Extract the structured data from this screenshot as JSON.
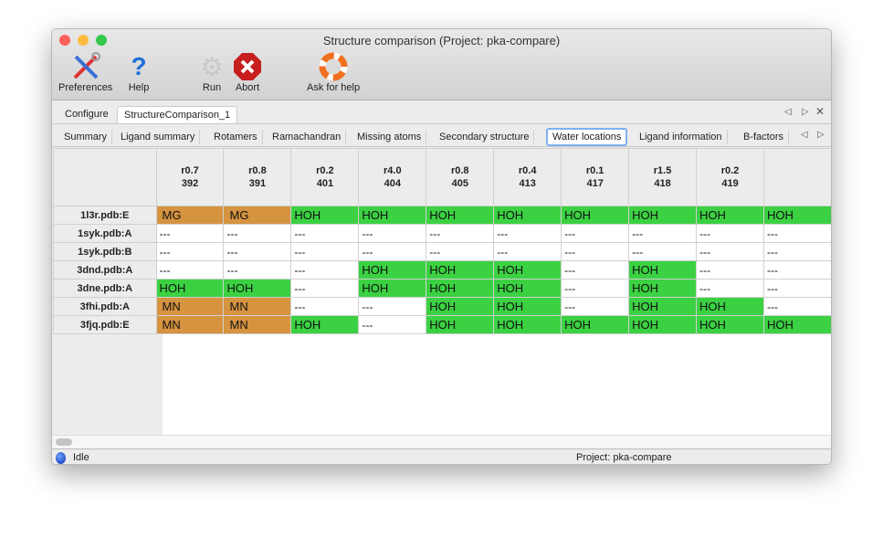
{
  "window": {
    "title": "Structure comparison (Project: pka-compare)"
  },
  "toolbar": [
    {
      "label": "Preferences",
      "icon": "tools-icon"
    },
    {
      "label": "Help",
      "icon": "help-icon"
    },
    {
      "label": "Run",
      "icon": "gear-icon"
    },
    {
      "label": "Abort",
      "icon": "abort-icon"
    },
    {
      "label": "Ask for help",
      "icon": "lifebuoy-icon"
    }
  ],
  "tabs": [
    {
      "label": "Configure"
    },
    {
      "label": "StructureComparison_1",
      "active": true
    }
  ],
  "subtabs": [
    {
      "label": "Summary"
    },
    {
      "label": "Ligand summary"
    },
    {
      "label": "Rotamers"
    },
    {
      "label": "Ramachandran"
    },
    {
      "label": "Missing atoms"
    },
    {
      "label": "Secondary structure"
    },
    {
      "label": "Water locations",
      "active": true
    },
    {
      "label": "Ligand information"
    },
    {
      "label": "B-factors"
    }
  ],
  "colors": {
    "metal": "#d69340",
    "water": "#3bd142"
  },
  "table": {
    "columns": [
      {
        "r": "r0.7",
        "n": "392"
      },
      {
        "r": "r0.8",
        "n": "391"
      },
      {
        "r": "r0.2",
        "n": "401"
      },
      {
        "r": "r4.0",
        "n": "404"
      },
      {
        "r": "r0.8",
        "n": "405"
      },
      {
        "r": "r0.4",
        "n": "413"
      },
      {
        "r": "r0.1",
        "n": "417"
      },
      {
        "r": "r1.5",
        "n": "418"
      },
      {
        "r": "r0.2",
        "n": "419"
      },
      {
        "r": "",
        "n": ""
      }
    ],
    "rows": [
      {
        "label": "1l3r.pdb:E",
        "cells": [
          "MG",
          "MG",
          "HOH",
          "HOH",
          "HOH",
          "HOH",
          "HOH",
          "HOH",
          "HOH",
          "HOH"
        ]
      },
      {
        "label": "1syk.pdb:A",
        "cells": [
          "---",
          "---",
          "---",
          "---",
          "---",
          "---",
          "---",
          "---",
          "---",
          "---"
        ]
      },
      {
        "label": "1syk.pdb:B",
        "cells": [
          "---",
          "---",
          "---",
          "---",
          "---",
          "---",
          "---",
          "---",
          "---",
          "---"
        ]
      },
      {
        "label": "3dnd.pdb:A",
        "cells": [
          "---",
          "---",
          "---",
          "HOH",
          "HOH",
          "HOH",
          "---",
          "HOH",
          "---",
          "---"
        ]
      },
      {
        "label": "3dne.pdb:A",
        "cells": [
          "HOH",
          "HOH",
          "---",
          "HOH",
          "HOH",
          "HOH",
          "---",
          "HOH",
          "---",
          "---"
        ]
      },
      {
        "label": "3fhi.pdb:A",
        "cells": [
          "MN",
          "MN",
          "---",
          "---",
          "HOH",
          "HOH",
          "---",
          "HOH",
          "HOH",
          "---"
        ]
      },
      {
        "label": "3fjq.pdb:E",
        "cells": [
          "MN",
          "MN",
          "HOH",
          "---",
          "HOH",
          "HOH",
          "HOH",
          "HOH",
          "HOH",
          "HOH"
        ]
      }
    ]
  },
  "status": {
    "state": "Idle",
    "project": "Project: pka-compare"
  }
}
